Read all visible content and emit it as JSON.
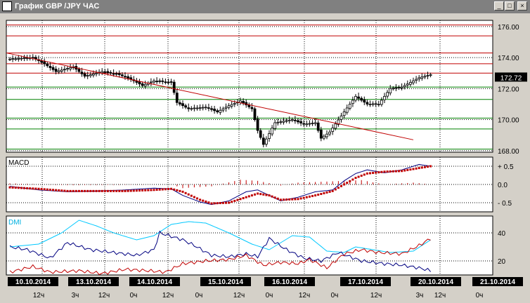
{
  "window": {
    "title": "График GBP /JPY  ЧАС"
  },
  "buttons": {
    "minimize": "_",
    "maximize": "□",
    "close": "×"
  },
  "colors": {
    "background": "#ffffff",
    "frame": "#d4d0c8",
    "candle": "#000000",
    "trendline": "#c00000",
    "resistance": "#c00000",
    "support": "#008000",
    "macd_signal": "#c00000",
    "macd_line": "#000080",
    "dmi_adx": "#00c8ff",
    "dmi_plus": "#000080",
    "dmi_minus": "#c00000"
  },
  "chart_data": [
    {
      "type": "candlestick",
      "title": "График GBP /JPY  ЧАС",
      "y_ticks": [
        "176.00",
        "174.00",
        "172.00",
        "170.00",
        "168.00"
      ],
      "ylim": [
        167.9,
        176.4
      ],
      "current_price": "172.72",
      "grid": true,
      "resistance_levels": [
        176.1,
        175.4,
        174.3,
        173.6,
        173.0
      ],
      "support_levels": [
        172.1,
        171.3,
        170.1,
        169.4,
        168.1
      ],
      "trendline": {
        "from": {
          "bar": 0,
          "y": 174.3
        },
        "to": {
          "bar": 140,
          "y": 168.7
        }
      },
      "candle_keypoints": [
        [
          0,
          173.9
        ],
        [
          8,
          174.0
        ],
        [
          12,
          173.6
        ],
        [
          16,
          173.1
        ],
        [
          22,
          173.4
        ],
        [
          26,
          172.8
        ],
        [
          32,
          173.1
        ],
        [
          38,
          172.9
        ],
        [
          42,
          172.6
        ],
        [
          46,
          172.2
        ],
        [
          50,
          172.5
        ],
        [
          56,
          172.4
        ],
        [
          58,
          171.1
        ],
        [
          62,
          170.7
        ],
        [
          68,
          170.8
        ],
        [
          72,
          170.5
        ],
        [
          76,
          170.9
        ],
        [
          80,
          171.2
        ],
        [
          84,
          170.7
        ],
        [
          86,
          169.3
        ],
        [
          88,
          168.4
        ],
        [
          92,
          169.8
        ],
        [
          98,
          170.0
        ],
        [
          102,
          169.7
        ],
        [
          106,
          169.8
        ],
        [
          108,
          168.8
        ],
        [
          111,
          169.2
        ],
        [
          116,
          170.5
        ],
        [
          120,
          171.5
        ],
        [
          124,
          171.0
        ],
        [
          128,
          171.0
        ],
        [
          132,
          172.0
        ],
        [
          136,
          172.1
        ],
        [
          142,
          172.7
        ],
        [
          146,
          172.9
        ]
      ],
      "bars": 147
    },
    {
      "type": "line",
      "title": "MACD",
      "y_ticks": [
        "+ 0.5",
        "0.0",
        "- 0.5"
      ],
      "ylim": [
        -0.75,
        0.75
      ],
      "series": [
        {
          "keypoints": [
            [
              0,
              -0.05
            ],
            [
              10,
              -0.15
            ],
            [
              20,
              -0.2
            ],
            [
              30,
              -0.18
            ],
            [
              40,
              -0.15
            ],
            [
              50,
              -0.1
            ],
            [
              56,
              -0.12
            ],
            [
              60,
              -0.3
            ],
            [
              66,
              -0.48
            ],
            [
              70,
              -0.55
            ],
            [
              76,
              -0.45
            ],
            [
              82,
              -0.2
            ],
            [
              86,
              -0.15
            ],
            [
              90,
              -0.3
            ],
            [
              94,
              -0.45
            ],
            [
              100,
              -0.35
            ],
            [
              106,
              -0.2
            ],
            [
              112,
              -0.15
            ],
            [
              116,
              0.1
            ],
            [
              120,
              0.3
            ],
            [
              124,
              0.4
            ],
            [
              130,
              0.32
            ],
            [
              136,
              0.4
            ],
            [
              142,
              0.55
            ],
            [
              146,
              0.5
            ]
          ]
        },
        {
          "keypoints": [
            [
              0,
              -0.08
            ],
            [
              10,
              -0.12
            ],
            [
              20,
              -0.18
            ],
            [
              30,
              -0.18
            ],
            [
              40,
              -0.18
            ],
            [
              50,
              -0.15
            ],
            [
              56,
              -0.12
            ],
            [
              60,
              -0.2
            ],
            [
              66,
              -0.42
            ],
            [
              70,
              -0.52
            ],
            [
              76,
              -0.5
            ],
            [
              82,
              -0.35
            ],
            [
              86,
              -0.25
            ],
            [
              90,
              -0.3
            ],
            [
              94,
              -0.42
            ],
            [
              100,
              -0.4
            ],
            [
              106,
              -0.3
            ],
            [
              112,
              -0.18
            ],
            [
              116,
              0.0
            ],
            [
              120,
              0.18
            ],
            [
              124,
              0.3
            ],
            [
              130,
              0.35
            ],
            [
              136,
              0.37
            ],
            [
              142,
              0.45
            ],
            [
              146,
              0.5
            ]
          ]
        }
      ],
      "histogram_keypoints": [
        [
          0,
          0.03
        ],
        [
          20,
          -0.02
        ],
        [
          56,
          0.0
        ],
        [
          60,
          -0.1
        ],
        [
          70,
          -0.05
        ],
        [
          80,
          0.13
        ],
        [
          86,
          0.1
        ],
        [
          94,
          -0.03
        ],
        [
          100,
          0.05
        ],
        [
          110,
          0.08
        ],
        [
          116,
          0.1
        ],
        [
          122,
          0.12
        ],
        [
          130,
          0.0
        ],
        [
          140,
          0.05
        ],
        [
          146,
          0.0
        ]
      ]
    },
    {
      "type": "line",
      "title": "DMI",
      "y_ticks": [
        "40",
        "20"
      ],
      "ylim": [
        10,
        52
      ],
      "series": [
        {
          "keypoints": [
            [
              0,
              30
            ],
            [
              10,
              32
            ],
            [
              18,
              40
            ],
            [
              24,
              49
            ],
            [
              30,
              45
            ],
            [
              36,
              40
            ],
            [
              44,
              35
            ],
            [
              50,
              38
            ],
            [
              56,
              46
            ],
            [
              62,
              48
            ],
            [
              68,
              47
            ],
            [
              76,
              40
            ],
            [
              84,
              32
            ],
            [
              90,
              28
            ],
            [
              98,
              38
            ],
            [
              104,
              37
            ],
            [
              110,
              27
            ],
            [
              116,
              26
            ],
            [
              120,
              30
            ],
            [
              126,
              28
            ],
            [
              132,
              26
            ],
            [
              140,
              27
            ],
            [
              146,
              35
            ]
          ]
        },
        {
          "keypoints": [
            [
              0,
              30
            ],
            [
              6,
              28
            ],
            [
              14,
              22
            ],
            [
              20,
              33
            ],
            [
              28,
              28
            ],
            [
              36,
              26
            ],
            [
              44,
              24
            ],
            [
              50,
              28
            ],
            [
              52,
              40
            ],
            [
              60,
              35
            ],
            [
              64,
              31
            ],
            [
              70,
              24
            ],
            [
              76,
              23
            ],
            [
              82,
              25
            ],
            [
              86,
              23
            ],
            [
              90,
              36
            ],
            [
              96,
              28
            ],
            [
              102,
              22
            ],
            [
              108,
              20
            ],
            [
              114,
              26
            ],
            [
              122,
              20
            ],
            [
              130,
              18
            ],
            [
              136,
              17
            ],
            [
              142,
              15
            ],
            [
              146,
              13
            ]
          ]
        },
        {
          "keypoints": [
            [
              0,
              12
            ],
            [
              8,
              16
            ],
            [
              14,
              12
            ],
            [
              24,
              13
            ],
            [
              32,
              11
            ],
            [
              40,
              14
            ],
            [
              48,
              13
            ],
            [
              54,
              12
            ],
            [
              60,
              18
            ],
            [
              68,
              20
            ],
            [
              76,
              21
            ],
            [
              82,
              24
            ],
            [
              88,
              17
            ],
            [
              94,
              19
            ],
            [
              100,
              18
            ],
            [
              104,
              21
            ],
            [
              110,
              15
            ],
            [
              116,
              25
            ],
            [
              122,
              28
            ],
            [
              128,
              26
            ],
            [
              136,
              25
            ],
            [
              142,
              31
            ],
            [
              146,
              36
            ]
          ]
        }
      ]
    }
  ],
  "timeline": {
    "dates": [
      "10.10.2014",
      "13.10.2014",
      "14.10.2014",
      "15.10.2014",
      "16.10.2014",
      "17.10.2014",
      "20.10.2014",
      "21.10.2014"
    ],
    "hours": [
      "12ч",
      "3ч",
      "12ч",
      "0ч",
      "12ч",
      "0ч",
      "12ч",
      "0ч",
      "12ч",
      "0ч",
      "12ч",
      "3ч",
      "12ч",
      "0ч"
    ]
  }
}
